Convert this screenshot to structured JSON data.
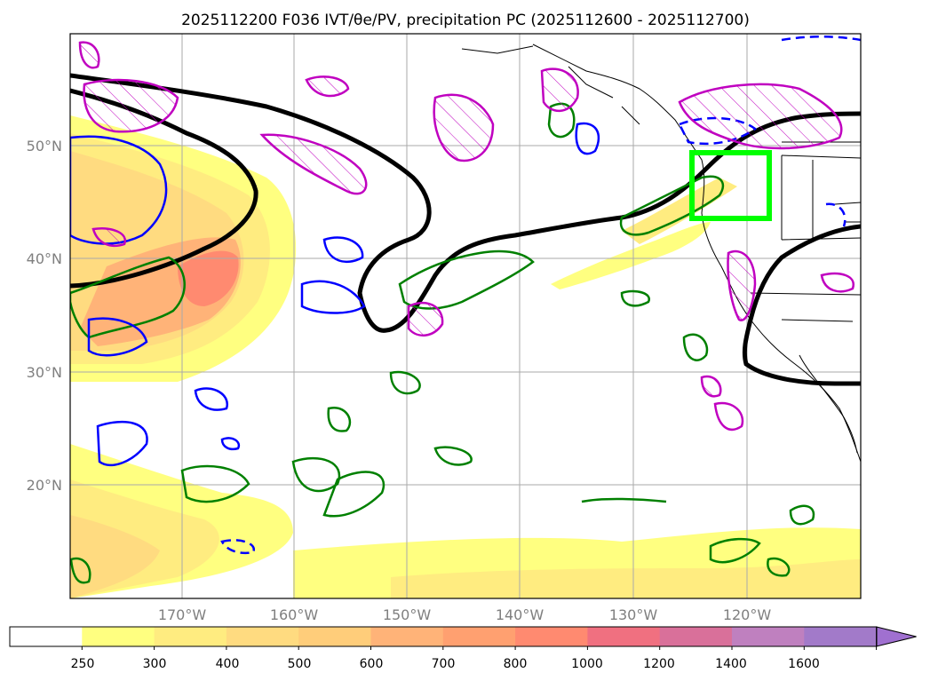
{
  "figure": {
    "title": "2025112200 F036 IVT/θe/PV, precipitation PC (2025112600 - 2025112700)"
  },
  "axes": {
    "lat_labels": [
      "50°N",
      "40°N",
      "30°N",
      "20°N"
    ],
    "lon_labels": [
      "170°W",
      "160°W",
      "150°W",
      "140°W",
      "130°W",
      "120°W"
    ]
  },
  "colorbar": {
    "tick_labels": [
      "250",
      "300",
      "400",
      "500",
      "600",
      "700",
      "800",
      "1000",
      "1200",
      "1400",
      "1600"
    ],
    "colors": [
      "#ffffff",
      "#ffff80",
      "#ffec80",
      "#ffdb80",
      "#ffcd7a",
      "#ffb378",
      "#ffa070",
      "#ff8a70",
      "#f07080",
      "#d9709a",
      "#bf80bf",
      "#a27ac9",
      "#a070d0"
    ]
  },
  "overlays": {
    "target_box_color": "#00ff00",
    "isentrope_color": "#000000",
    "pv_positive_color": "#c000c0",
    "pv_negative_color": "#0000ff",
    "precip_color": "#008000"
  }
}
